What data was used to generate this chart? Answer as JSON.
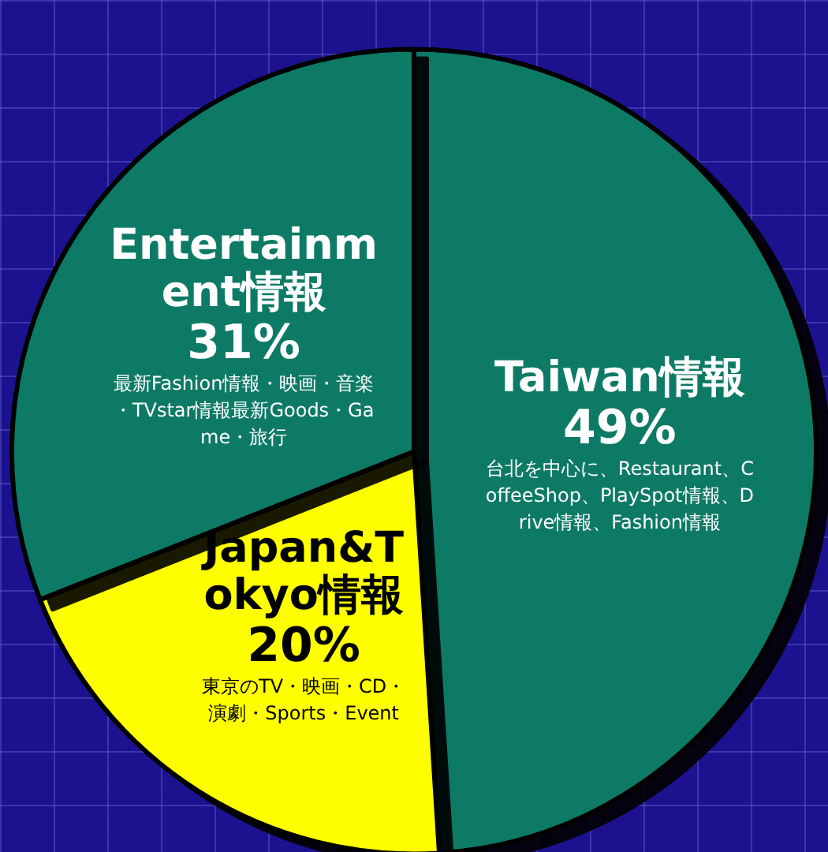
{
  "chart_data": {
    "type": "pie",
    "categories": [
      "Taiwan情報",
      "Japan&Tokyo情報",
      "Entertainment情報"
    ],
    "values": [
      49,
      20,
      31
    ],
    "colors": [
      "#087a66",
      "#ffff00",
      "#087a66"
    ],
    "value_labels": [
      "49%",
      "20%",
      "31%"
    ],
    "annotations": [
      "台北を中心に、Restaurant、CoffeeShop、PlaySpot情報、Drive情報、Fashion情報",
      "東京のTV・映画・CD・演劇・Sports・Event",
      "最新Fashion情報・映画・音楽・TVstar情報最新Goods・Game・旅行"
    ],
    "legend": false
  }
}
